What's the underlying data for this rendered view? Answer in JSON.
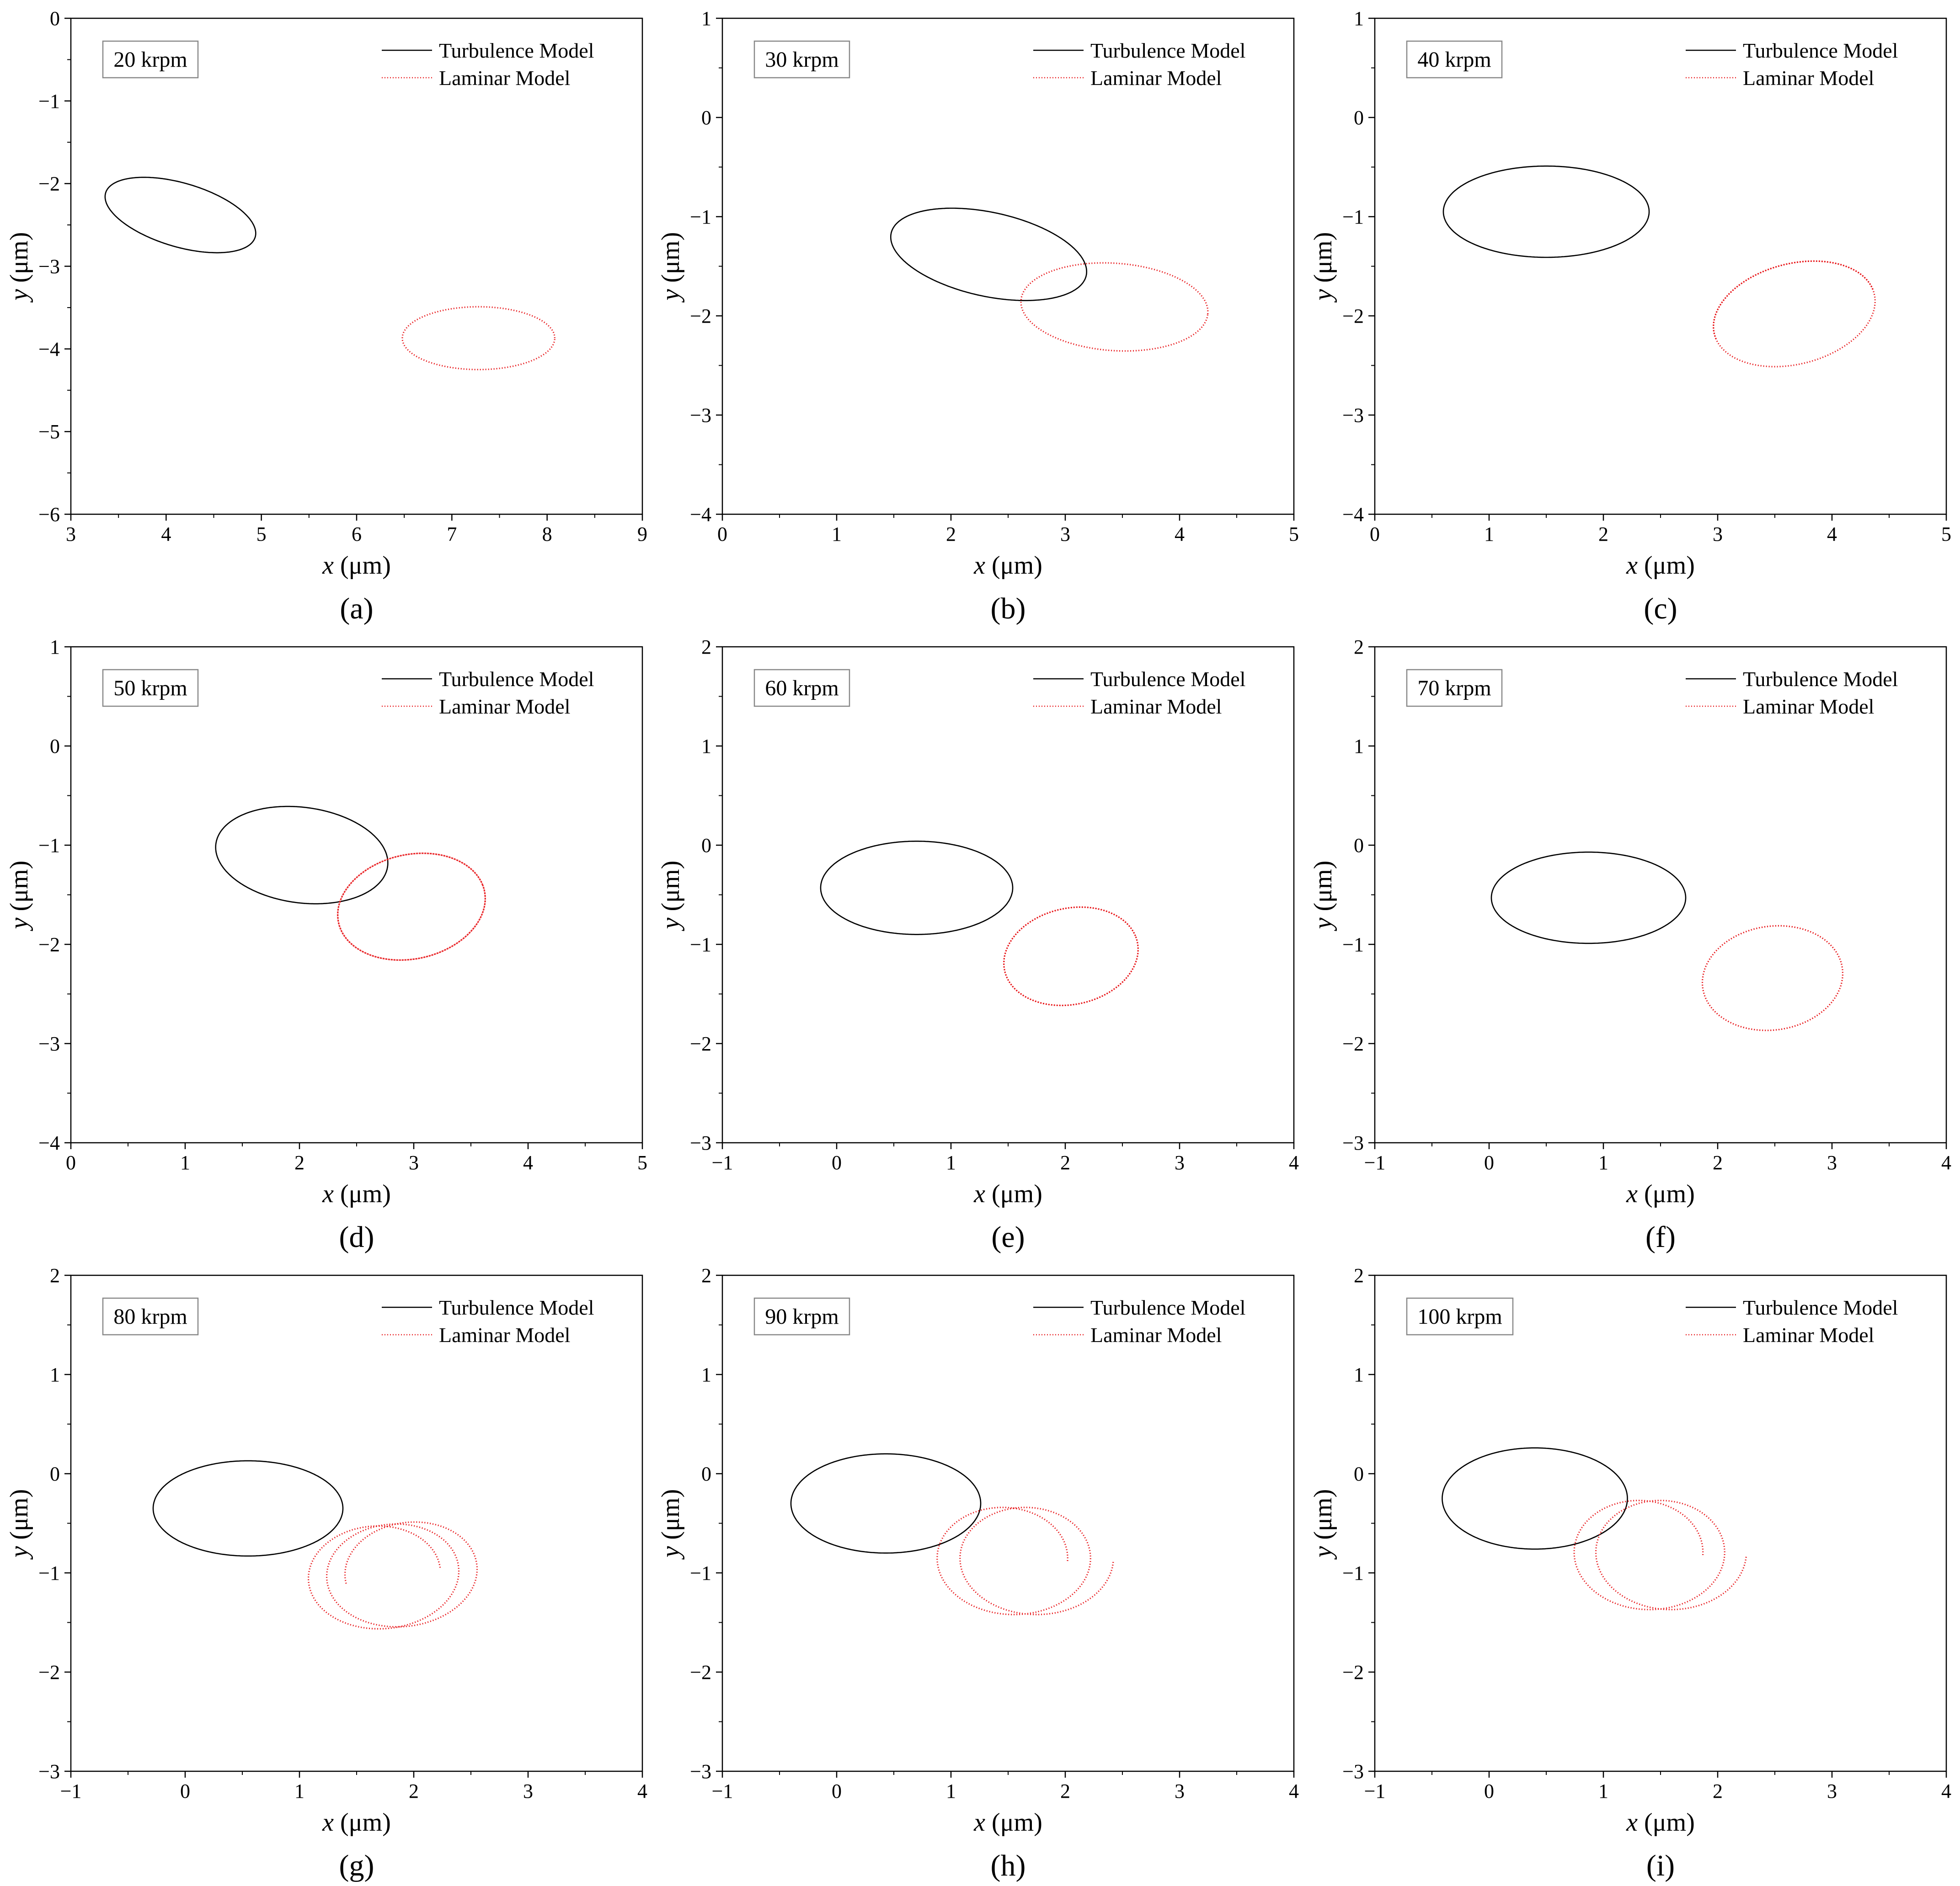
{
  "figure": {
    "series_names": [
      "Turbulence Model",
      "Laminar Model"
    ],
    "series_colors": [
      "#000000",
      "#e8191c"
    ],
    "x_axis_label": "x (μm)",
    "y_axis_label": "y (μm)"
  },
  "chart_data": [
    {
      "type": "scatter",
      "panel": "(a)",
      "speed_label": "20 krpm",
      "xlim": [
        3,
        9
      ],
      "ylim": [
        -6,
        0
      ],
      "xticks": [
        3,
        4,
        5,
        6,
        7,
        8,
        9
      ],
      "yticks": [
        -6,
        -5,
        -4,
        -3,
        -2,
        -1,
        0
      ],
      "xlabel": "x (μm)",
      "ylabel": "y (μm)",
      "series": [
        {
          "name": "Turbulence Model",
          "style": "solid",
          "color": "#000000",
          "center": [
            4.15,
            -2.38
          ],
          "radii": [
            0.83,
            0.38
          ],
          "angle_deg": 20,
          "loops": 1
        },
        {
          "name": "Laminar Model",
          "style": "dotted",
          "color": "#e8191c",
          "center": [
            7.28,
            -3.87
          ],
          "radii": [
            0.8,
            0.38
          ],
          "angle_deg": 0,
          "loops": 1
        }
      ]
    },
    {
      "type": "scatter",
      "panel": "(b)",
      "speed_label": "30 krpm",
      "xlim": [
        0,
        5
      ],
      "ylim": [
        -4,
        1
      ],
      "xticks": [
        0,
        1,
        2,
        3,
        4,
        5
      ],
      "yticks": [
        -4,
        -3,
        -2,
        -1,
        0,
        1
      ],
      "xlabel": "x (μm)",
      "ylabel": "y (μm)",
      "series": [
        {
          "name": "Turbulence Model",
          "style": "solid",
          "color": "#000000",
          "center": [
            2.33,
            -1.38
          ],
          "radii": [
            0.88,
            0.42
          ],
          "angle_deg": 15,
          "loops": 1
        },
        {
          "name": "Laminar Model",
          "style": "dotted",
          "color": "#e8191c",
          "center": [
            3.43,
            -1.91
          ],
          "radii": [
            0.82,
            0.44
          ],
          "angle_deg": 5,
          "loops": 1
        }
      ]
    },
    {
      "type": "scatter",
      "panel": "(c)",
      "speed_label": "40 krpm",
      "xlim": [
        0,
        5
      ],
      "ylim": [
        -4,
        1
      ],
      "xticks": [
        0,
        1,
        2,
        3,
        4,
        5
      ],
      "yticks": [
        -4,
        -3,
        -2,
        -1,
        0,
        1
      ],
      "xlabel": "x (μm)",
      "ylabel": "y (μm)",
      "series": [
        {
          "name": "Turbulence Model",
          "style": "solid",
          "color": "#000000",
          "center": [
            1.5,
            -0.95
          ],
          "radii": [
            0.9,
            0.46
          ],
          "angle_deg": 0,
          "loops": 1
        },
        {
          "name": "Laminar Model",
          "style": "dotted",
          "color": "#e8191c",
          "center": [
            3.67,
            -1.98
          ],
          "radii": [
            0.73,
            0.5
          ],
          "angle_deg": -20,
          "loops": 1.5
        }
      ]
    },
    {
      "type": "scatter",
      "panel": "(d)",
      "speed_label": "50 krpm",
      "xlim": [
        0,
        5
      ],
      "ylim": [
        -4,
        1
      ],
      "xticks": [
        0,
        1,
        2,
        3,
        4,
        5
      ],
      "yticks": [
        -4,
        -3,
        -2,
        -1,
        0,
        1
      ],
      "xlabel": "x (μm)",
      "ylabel": "y (μm)",
      "series": [
        {
          "name": "Turbulence Model",
          "style": "solid",
          "color": "#000000",
          "center": [
            2.02,
            -1.1
          ],
          "radii": [
            0.76,
            0.48
          ],
          "angle_deg": 10,
          "loops": 1.5
        },
        {
          "name": "Laminar Model",
          "style": "dotted",
          "color": "#e8191c",
          "center": [
            2.98,
            -1.62
          ],
          "radii": [
            0.66,
            0.52
          ],
          "angle_deg": -20,
          "loops": 2
        }
      ]
    },
    {
      "type": "scatter",
      "panel": "(e)",
      "speed_label": "60 krpm",
      "xlim": [
        -1,
        4
      ],
      "ylim": [
        -3,
        2
      ],
      "xticks": [
        -1,
        0,
        1,
        2,
        3,
        4
      ],
      "yticks": [
        -3,
        -2,
        -1,
        0,
        1,
        2
      ],
      "xlabel": "x (μm)",
      "ylabel": "y (μm)",
      "series": [
        {
          "name": "Turbulence Model",
          "style": "solid",
          "color": "#000000",
          "center": [
            0.7,
            -0.43
          ],
          "radii": [
            0.84,
            0.47
          ],
          "angle_deg": 0,
          "loops": 1
        },
        {
          "name": "Laminar Model",
          "style": "dotted",
          "color": "#e8191c",
          "center": [
            2.05,
            -1.12
          ],
          "radii": [
            0.6,
            0.48
          ],
          "angle_deg": -20,
          "loops": 2
        }
      ]
    },
    {
      "type": "scatter",
      "panel": "(f)",
      "speed_label": "70 krpm",
      "xlim": [
        -1,
        4
      ],
      "ylim": [
        -3,
        2
      ],
      "xticks": [
        -1,
        0,
        1,
        2,
        3,
        4
      ],
      "yticks": [
        -3,
        -2,
        -1,
        0,
        1,
        2
      ],
      "xlabel": "x (μm)",
      "ylabel": "y (μm)",
      "series": [
        {
          "name": "Turbulence Model",
          "style": "solid",
          "color": "#000000",
          "center": [
            0.87,
            -0.53
          ],
          "radii": [
            0.85,
            0.46
          ],
          "angle_deg": 0,
          "loops": 1
        },
        {
          "name": "Laminar Model",
          "style": "dotted",
          "color": "#e8191c",
          "center": [
            2.48,
            -1.34
          ],
          "radii": [
            0.62,
            0.52
          ],
          "angle_deg": -15,
          "loops": 2
        }
      ]
    },
    {
      "type": "scatter",
      "panel": "(g)",
      "speed_label": "80 krpm",
      "xlim": [
        -1,
        4
      ],
      "ylim": [
        -3,
        2
      ],
      "xticks": [
        -1,
        0,
        1,
        2,
        3,
        4
      ],
      "yticks": [
        -3,
        -2,
        -1,
        0,
        1,
        2
      ],
      "xlabel": "x (μm)",
      "ylabel": "y (μm)",
      "series": [
        {
          "name": "Turbulence Model",
          "style": "solid",
          "color": "#000000",
          "center": [
            0.55,
            -0.35
          ],
          "radii": [
            0.83,
            0.48
          ],
          "angle_deg": 0,
          "loops": 1
        },
        {
          "name": "Laminar Model",
          "style": "dotted",
          "color": "#e8191c",
          "center": [
            1.82,
            -1.03
          ],
          "radii": [
            0.62,
            0.52
          ],
          "angle_deg": -10,
          "loops": 2.5,
          "drift": [
            0.4,
            0.05
          ]
        }
      ]
    },
    {
      "type": "scatter",
      "panel": "(h)",
      "speed_label": "90 krpm",
      "xlim": [
        -1,
        4
      ],
      "ylim": [
        -3,
        2
      ],
      "xticks": [
        -1,
        0,
        1,
        2,
        3,
        4
      ],
      "yticks": [
        -3,
        -2,
        -1,
        0,
        1,
        2
      ],
      "xlabel": "x (μm)",
      "ylabel": "y (μm)",
      "series": [
        {
          "name": "Turbulence Model",
          "style": "solid",
          "color": "#000000",
          "center": [
            0.43,
            -0.3
          ],
          "radii": [
            0.83,
            0.5
          ],
          "angle_deg": 0,
          "loops": 1
        },
        {
          "name": "Laminar Model",
          "style": "dotted",
          "color": "#e8191c",
          "center": [
            1.6,
            -0.88
          ],
          "radii": [
            0.62,
            0.54
          ],
          "angle_deg": 0,
          "loops": 2,
          "drift": [
            0.4,
            0.0
          ]
        }
      ]
    },
    {
      "type": "scatter",
      "panel": "(i)",
      "speed_label": "100 krpm",
      "xlim": [
        -1,
        4
      ],
      "ylim": [
        -3,
        2
      ],
      "xticks": [
        -1,
        0,
        1,
        2,
        3,
        4
      ],
      "yticks": [
        -3,
        -2,
        -1,
        0,
        1,
        2
      ],
      "xlabel": "x (μm)",
      "ylabel": "y (μm)",
      "series": [
        {
          "name": "Turbulence Model",
          "style": "solid",
          "color": "#000000",
          "center": [
            0.4,
            -0.25
          ],
          "radii": [
            0.81,
            0.51
          ],
          "angle_deg": 0,
          "loops": 1
        },
        {
          "name": "Laminar Model",
          "style": "dotted",
          "color": "#e8191c",
          "center": [
            1.45,
            -0.82
          ],
          "radii": [
            0.61,
            0.55
          ],
          "angle_deg": 0,
          "loops": 2,
          "drift": [
            0.38,
            0.0
          ]
        }
      ]
    }
  ]
}
